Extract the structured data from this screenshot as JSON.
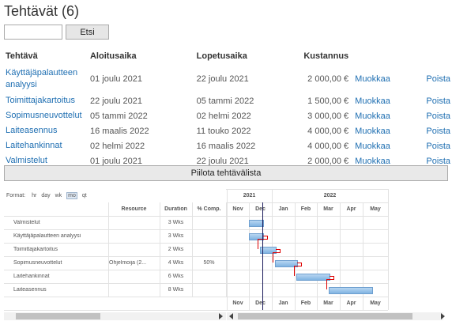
{
  "page": {
    "title": "Tehtävät (6)"
  },
  "search": {
    "placeholder": "",
    "button_label": "Etsi"
  },
  "table": {
    "headers": [
      "Tehtävä",
      "Aloitusaika",
      "Lopetusaika",
      "Kustannus"
    ],
    "edit_label": "Muokkaa",
    "delete_label": "Poista",
    "rows": [
      {
        "name": "Käyttäjäpalautteen analyysi",
        "start": "01 joulu 2021",
        "end": "22 joulu 2021",
        "cost": "2 000,00 €"
      },
      {
        "name": "Toimittajakartoitus",
        "start": "22 joulu 2021",
        "end": "05 tammi 2022",
        "cost": "1 500,00 €"
      },
      {
        "name": "Sopimusneuvottelut",
        "start": "05 tammi 2022",
        "end": "02 helmi 2022",
        "cost": "3 000,00 €"
      },
      {
        "name": "Laiteasennus",
        "start": "16 maalis 2022",
        "end": "11 touko 2022",
        "cost": "4 000,00 €"
      },
      {
        "name": "Laitehankinnat",
        "start": "02 helmi 2022",
        "end": "16 maalis 2022",
        "cost": "4 000,00 €"
      },
      {
        "name": "Valmistelut",
        "start": "01 joulu 2021",
        "end": "22 joulu 2021",
        "cost": "2 000,00 €"
      }
    ]
  },
  "toggle": {
    "label": "Piilota tehtävälista"
  },
  "gantt": {
    "format_label": "Format:",
    "formats": [
      "hr",
      "day",
      "wk",
      "mo",
      "qt"
    ],
    "selected_format": "mo",
    "columns": [
      "Resource",
      "Duration",
      "% Comp."
    ],
    "years": [
      "2021",
      "2022"
    ],
    "months": [
      "Nov",
      "Dec",
      "Jan",
      "Feb",
      "Mar",
      "Apr",
      "May"
    ],
    "tasks": [
      {
        "name": "Valmistelut",
        "resource": "",
        "duration": "3 Wks",
        "comp": ""
      },
      {
        "name": "Käyttäjäpalautteen analyysi",
        "resource": "",
        "duration": "3 Wks",
        "comp": ""
      },
      {
        "name": "Toimittajakartoitus",
        "resource": "",
        "duration": "2 Wks",
        "comp": ""
      },
      {
        "name": "Sopimusneuvottelut",
        "resource": "Ohjelmoija (2...",
        "duration": "4 Wks",
        "comp": "50%"
      },
      {
        "name": "Laitehankinnat",
        "resource": "",
        "duration": "6 Wks",
        "comp": ""
      },
      {
        "name": "Laiteasennus",
        "resource": "",
        "duration": "8 Wks",
        "comp": ""
      }
    ]
  }
}
